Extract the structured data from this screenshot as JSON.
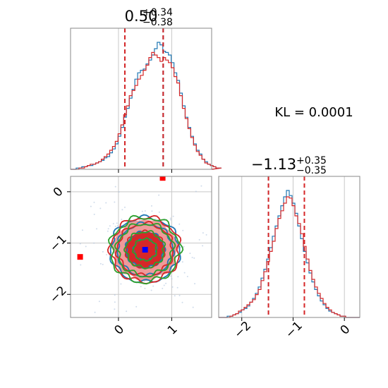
{
  "chart_data": [
    {
      "type": "histogram",
      "panel": "marginal-1",
      "title_main": "0.50",
      "title_sup": "+0.34",
      "title_sub": "−0.38",
      "xlim": [
        -0.9,
        1.75
      ],
      "x_grid": [
        0,
        1
      ],
      "bin_edges_start": -0.9,
      "bin_width": 0.0525,
      "series": [
        {
          "name": "blue",
          "color": "#1f77b4",
          "counts": [
            0,
            0,
            1,
            1,
            2,
            2,
            3,
            3,
            4,
            5,
            6,
            7,
            9,
            10,
            13,
            16,
            20,
            26,
            33,
            41,
            48,
            56,
            63,
            71,
            76,
            78,
            79,
            83,
            86,
            90,
            95,
            100,
            98,
            93,
            92,
            90,
            84,
            76,
            70,
            60,
            50,
            41,
            33,
            26,
            20,
            15,
            12,
            8,
            6,
            4,
            3,
            2,
            1,
            1
          ]
        },
        {
          "name": "red",
          "color": "#d62728",
          "counts": [
            0,
            0,
            0,
            1,
            1,
            2,
            3,
            4,
            4,
            5,
            6,
            8,
            10,
            12,
            15,
            18,
            22,
            28,
            35,
            43,
            50,
            58,
            62,
            66,
            71,
            74,
            78,
            82,
            88,
            92,
            90,
            88,
            85,
            88,
            86,
            84,
            80,
            73,
            68,
            58,
            48,
            40,
            32,
            25,
            19,
            14,
            11,
            8,
            5,
            4,
            3,
            2,
            1,
            1
          ]
        }
      ],
      "vlines": [
        {
          "x": 0.12,
          "color": "#1f77b4"
        },
        {
          "x": 0.12,
          "color": "#d62728"
        },
        {
          "x": 0.84,
          "color": "#1f77b4"
        },
        {
          "x": 0.84,
          "color": "#d62728"
        }
      ]
    },
    {
      "type": "histogram",
      "panel": "marginal-2",
      "title_main": "−1.13",
      "title_sup": "+0.35",
      "title_sub": "−0.35",
      "xlim": [
        -2.45,
        0.3
      ],
      "x_ticks": [
        -2,
        -1,
        0
      ],
      "x_tick_labels": [
        "−2",
        "−1",
        "0"
      ],
      "bin_edges_start": -2.45,
      "bin_width": 0.055,
      "series": [
        {
          "name": "blue",
          "color": "#1f77b4",
          "counts": [
            0,
            0,
            0,
            1,
            1,
            2,
            3,
            4,
            6,
            7,
            9,
            12,
            15,
            19,
            24,
            31,
            38,
            46,
            55,
            64,
            72,
            80,
            88,
            95,
            100,
            96,
            90,
            82,
            72,
            62,
            52,
            43,
            35,
            28,
            22,
            17,
            13,
            10,
            7,
            5,
            4,
            3,
            2,
            1,
            1,
            0,
            0,
            0,
            0,
            0
          ]
        },
        {
          "name": "red",
          "color": "#d62728",
          "counts": [
            0,
            0,
            0,
            0,
            1,
            2,
            3,
            5,
            6,
            8,
            10,
            12,
            14,
            18,
            22,
            29,
            36,
            44,
            52,
            60,
            70,
            78,
            84,
            90,
            95,
            94,
            88,
            80,
            74,
            66,
            56,
            46,
            37,
            30,
            24,
            19,
            15,
            11,
            8,
            6,
            4,
            3,
            2,
            1,
            1,
            0,
            0,
            0,
            0,
            0
          ]
        }
      ],
      "vlines": [
        {
          "x": -1.48,
          "color": "#1f77b4"
        },
        {
          "x": -1.48,
          "color": "#d62728"
        },
        {
          "x": -0.78,
          "color": "#d62728"
        }
      ]
    },
    {
      "type": "contour",
      "panel": "joint",
      "xlim": [
        -0.9,
        1.75
      ],
      "ylim": [
        -2.45,
        0.3
      ],
      "x_ticks": [
        0,
        1
      ],
      "x_tick_labels": [
        "0",
        "1"
      ],
      "y_ticks": [
        0,
        -1,
        -2
      ],
      "y_tick_labels": [
        "0",
        "−1",
        "−2"
      ],
      "center": {
        "x": 0.5,
        "y": -1.13
      },
      "sigma": {
        "x": 0.36,
        "y": 0.35
      },
      "fill_levels": [
        {
          "k": 1.7,
          "color": "#ef9a9a"
        },
        {
          "k": 1.0,
          "color": "#d62728"
        }
      ],
      "contour_levels": [
        0.6,
        1.0,
        1.45,
        1.8
      ],
      "contour_colors": [
        "#1f77b4",
        "#d62728",
        "#2ca02c"
      ],
      "markers": [
        {
          "x": 0.5,
          "y": -1.13,
          "color": "#0000ff"
        },
        {
          "x": -0.72,
          "y": -1.27,
          "color": "#ff0000"
        },
        {
          "x": 0.83,
          "y": 0.27,
          "color": "#ff0000"
        }
      ]
    }
  ],
  "annotation": {
    "kl_text": "KL = 0.0001"
  }
}
